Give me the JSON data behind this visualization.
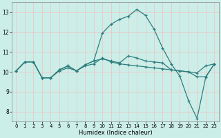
{
  "title": "",
  "xlabel": "Humidex (Indice chaleur)",
  "xlim": [
    -0.5,
    23.5
  ],
  "ylim": [
    7.5,
    13.5
  ],
  "yticks": [
    8,
    9,
    10,
    11,
    12,
    13
  ],
  "xticks": [
    0,
    1,
    2,
    3,
    4,
    5,
    6,
    7,
    8,
    9,
    10,
    11,
    12,
    13,
    14,
    15,
    16,
    17,
    18,
    19,
    20,
    21,
    22,
    23
  ],
  "bg_color": "#cceee8",
  "line_color": "#2d7d7d",
  "grid_color_v": "#f0c0c0",
  "grid_color_h": "#f0c0c0",
  "series": [
    [
      10.05,
      10.5,
      10.5,
      9.7,
      9.7,
      10.05,
      10.2,
      10.05,
      10.3,
      10.4,
      10.7,
      10.5,
      10.4,
      10.35,
      10.3,
      10.25,
      10.2,
      10.15,
      10.1,
      10.05,
      10.0,
      9.95,
      10.3,
      10.4
    ],
    [
      10.05,
      10.5,
      10.5,
      9.7,
      9.7,
      10.1,
      10.3,
      10.05,
      10.35,
      10.55,
      11.95,
      12.4,
      12.65,
      12.8,
      13.15,
      12.85,
      12.15,
      11.2,
      10.4,
      9.78,
      8.55,
      7.65,
      9.72,
      10.4
    ],
    [
      10.05,
      10.5,
      10.5,
      9.7,
      9.7,
      10.1,
      10.3,
      10.05,
      10.35,
      10.55,
      10.65,
      10.55,
      10.45,
      10.8,
      10.7,
      10.55,
      10.5,
      10.45,
      10.1,
      10.05,
      10.0,
      9.75,
      9.75,
      10.4
    ]
  ],
  "figsize": [
    3.2,
    2.0
  ],
  "dpi": 100
}
